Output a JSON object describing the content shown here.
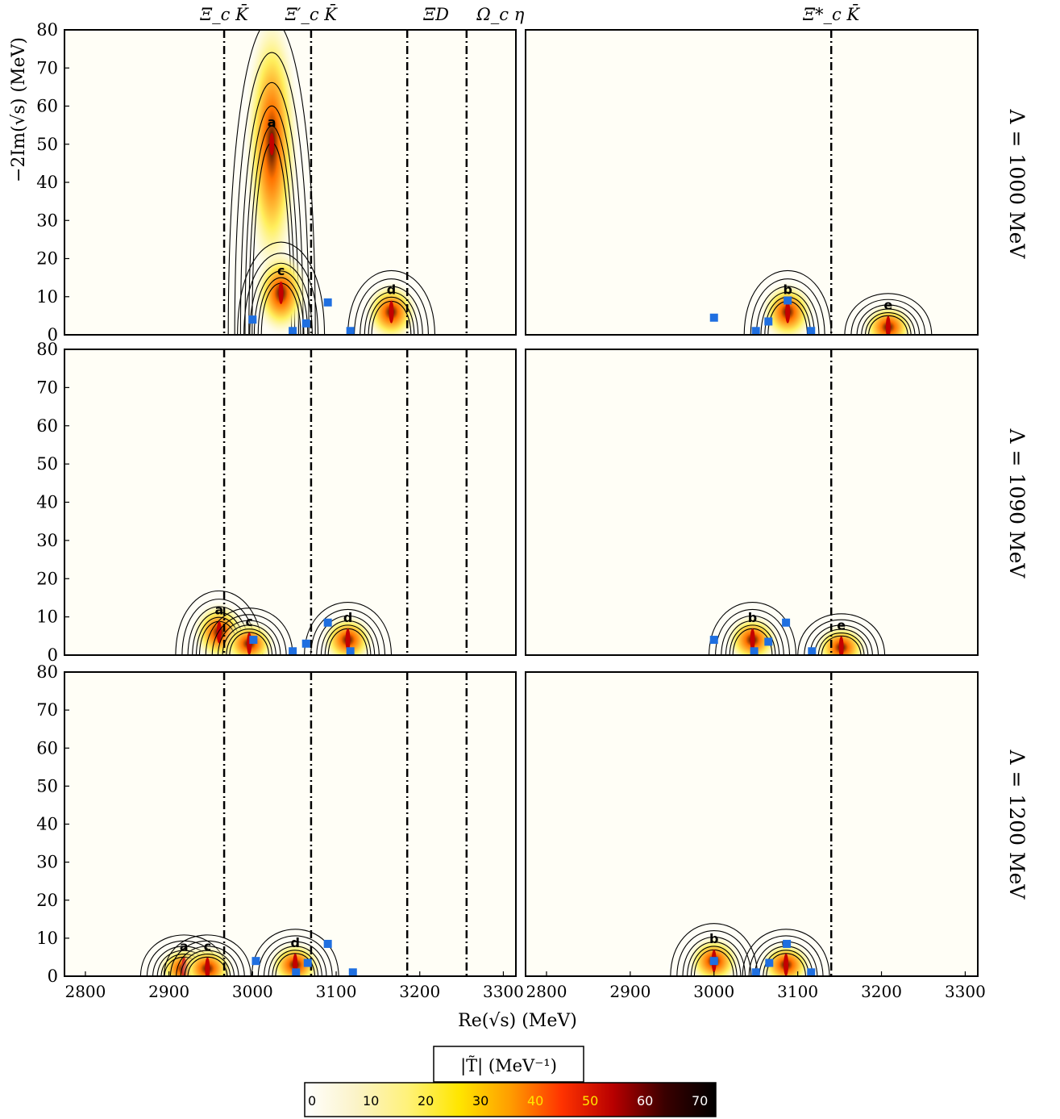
{
  "chart_data": {
    "type": "heatmap",
    "title": "",
    "xlabel": "Re(√s) (MeV)",
    "ylabel": "−2Im(√s) (MeV)",
    "xlim": [
      2775,
      3315
    ],
    "ylim": [
      0,
      80
    ],
    "x_ticks": [
      2800,
      2900,
      3000,
      3100,
      3200,
      3300
    ],
    "y_ticks": [
      0,
      10,
      20,
      30,
      40,
      50,
      60,
      70,
      80
    ],
    "column_thresholds": [
      [
        {
          "label": "Ξ_c K̄",
          "x": 2966
        },
        {
          "label": "Ξ′_c K̄",
          "x": 3070
        },
        {
          "label": "ΞD",
          "x": 3185
        },
        {
          "label": "Ω_c η",
          "x": 3256
        }
      ],
      [
        {
          "label": "Ξ*_c K̄",
          "x": 3140
        }
      ]
    ],
    "rows": [
      {
        "label": "Λ = 1000 MeV",
        "panels": [
          {
            "poles": [
              {
                "label": "a",
                "re": 3023,
                "im2": 50
              },
              {
                "label": "c",
                "re": 3034,
                "im2": 11
              },
              {
                "label": "d",
                "re": 3166,
                "im2": 6
              }
            ],
            "squares": [
              [
                3000,
                4
              ],
              [
                3048,
                1
              ],
              [
                3064,
                3
              ],
              [
                3090,
                8.5
              ],
              [
                3117,
                1
              ]
            ]
          },
          {
            "poles": [
              {
                "label": "b",
                "re": 3088,
                "im2": 6
              },
              {
                "label": "e",
                "re": 3208,
                "im2": 2
              }
            ],
            "squares": [
              [
                3000,
                4.5
              ],
              [
                3050,
                1
              ],
              [
                3065,
                3.5
              ],
              [
                3088,
                9
              ],
              [
                3116,
                1
              ]
            ]
          }
        ]
      },
      {
        "label": "Λ = 1090 MeV",
        "panels": [
          {
            "poles": [
              {
                "label": "a",
                "re": 2960,
                "im2": 6
              },
              {
                "label": "c",
                "re": 2996,
                "im2": 3
              },
              {
                "label": "d",
                "re": 3114,
                "im2": 4
              }
            ],
            "squares": [
              [
                3001,
                4
              ],
              [
                3048,
                1
              ],
              [
                3064,
                3
              ],
              [
                3090,
                8.5
              ],
              [
                3117,
                1
              ]
            ]
          },
          {
            "poles": [
              {
                "label": "b",
                "re": 3046,
                "im2": 4
              },
              {
                "label": "e",
                "re": 3152,
                "im2": 2
              }
            ],
            "squares": [
              [
                3000,
                4
              ],
              [
                3048,
                1
              ],
              [
                3065,
                3.5
              ],
              [
                3086,
                8.5
              ],
              [
                3117,
                1
              ]
            ]
          }
        ]
      },
      {
        "label": "Λ = 1200 MeV",
        "panels": [
          {
            "poles": [
              {
                "label": "a",
                "re": 2918,
                "im2": 2
              },
              {
                "label": "c",
                "re": 2946,
                "im2": 2
              },
              {
                "label": "d",
                "re": 3051,
                "im2": 3
              }
            ],
            "squares": [
              [
                3004,
                4
              ],
              [
                3052,
                1
              ],
              [
                3066,
                3.5
              ],
              [
                3090,
                8.5
              ],
              [
                3120,
                1
              ]
            ]
          },
          {
            "poles": [
              {
                "label": "b",
                "re": 3000,
                "im2": 4
              },
              {
                "label": "e",
                "re": 3086,
                "im2": 3
              }
            ],
            "squares": [
              [
                3000,
                4
              ],
              [
                3050,
                1
              ],
              [
                3066,
                3.5
              ],
              [
                3087,
                8.5
              ],
              [
                3116,
                1
              ]
            ]
          }
        ]
      }
    ],
    "colorbar": {
      "label": "|T̃|  (MeV⁻¹)",
      "ticks": [
        0,
        10,
        20,
        30,
        40,
        50,
        60,
        70
      ],
      "range": [
        0,
        75
      ],
      "colors": [
        "#ffffff",
        "#fbf3c8",
        "#fff27a",
        "#ffe600",
        "#ff9d00",
        "#ff3300",
        "#b80000",
        "#3a0000",
        "#000000"
      ]
    },
    "marker_color": "#1f6fe0"
  }
}
